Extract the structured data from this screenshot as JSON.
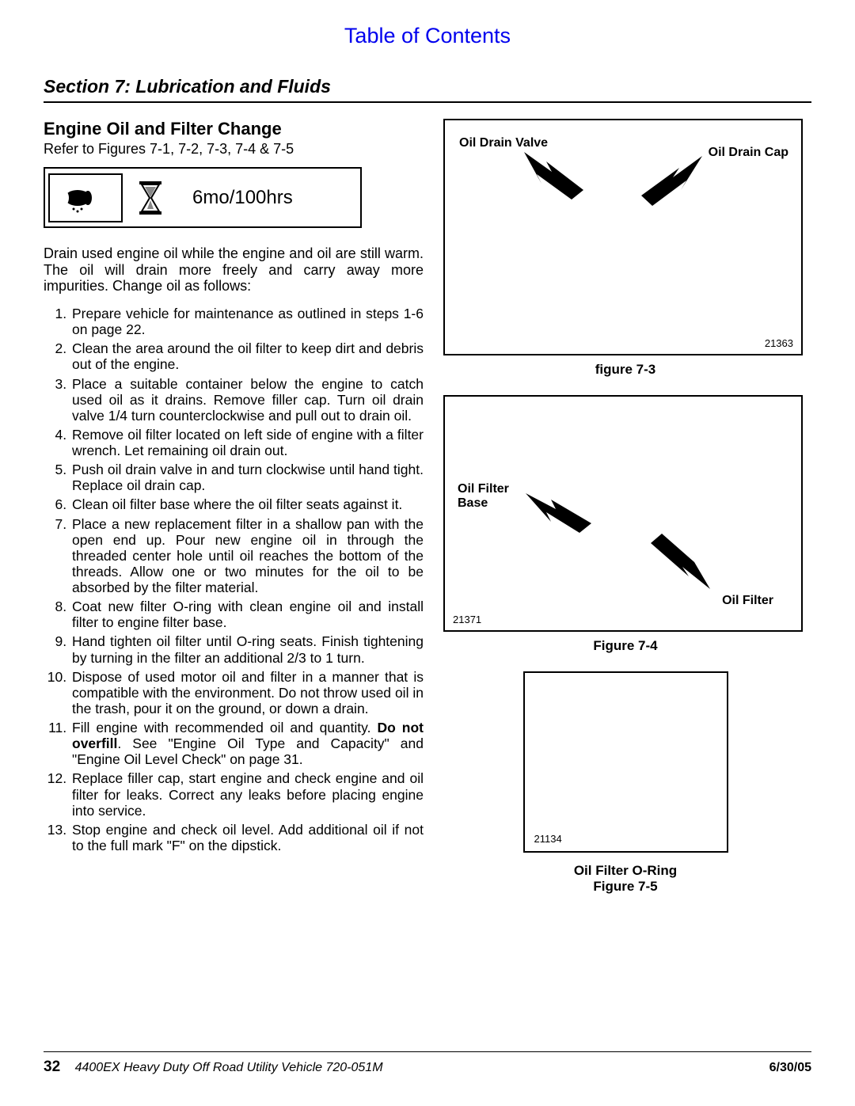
{
  "toc_link": "Table of Contents",
  "section_title": "Section 7: Lubrication and Fluids",
  "subsection": "Engine Oil and Filter Change",
  "refer_text": "Refer to Figures 7-1, 7-2, 7-3, 7-4 & 7-5",
  "interval": "6mo/100hrs",
  "intro": "Drain used engine oil while the engine and oil are still warm. The oil will drain more freely and carry away more impurities. Change oil as follows:",
  "steps": [
    "Prepare vehicle for maintenance as outlined in steps 1-6 on page 22.",
    "Clean the area around the oil filter to keep dirt and debris out of the engine.",
    "Place a suitable container below the engine to catch used oil as it drains. Remove filler cap. Turn oil drain valve 1/4 turn counterclockwise and pull out to drain oil.",
    "Remove oil filter located on left side of engine with a filter wrench. Let remaining oil drain out.",
    "Push oil drain valve in and turn clockwise until hand tight. Replace oil drain cap.",
    "Clean oil filter base where the oil filter seats against it.",
    "Place a new replacement filter in a shallow pan with the open end up. Pour new engine oil in through the threaded center hole until oil reaches the bottom of the threads. Allow one or two minutes for the oil to be absorbed by the filter material.",
    "Coat new filter O-ring with clean engine oil and install filter to engine filter base.",
    "Hand tighten oil filter until O-ring seats. Finish tightening by turning in the filter an additional 2/3 to 1 turn.",
    "Dispose of used motor oil and filter in a manner that is compatible with the environment. Do not throw used oil in the trash, pour it on the ground, or down a drain.",
    "Fill engine with recommended oil and quantity. <b>Do not overfill</b>. See \"Engine Oil Type and Capacity\" and \"Engine Oil Level Check\" on page 31.",
    "Replace filler cap, start engine and check engine and oil filter for leaks. Correct any leaks before placing engine into service.",
    "Stop engine and check oil level. Add additional oil if not to the full mark \"F\" on the dipstick."
  ],
  "fig3": {
    "label_left": "Oil Drain Valve",
    "label_right": "Oil Drain Cap",
    "number": "21363",
    "caption": "figure 7-3"
  },
  "fig4": {
    "label_top": "Oil Filter Base",
    "label_bottom": "Oil Filter",
    "number": "21371",
    "caption": "Figure 7-4"
  },
  "fig5": {
    "number": "21134",
    "caption_line1": "Oil Filter O-Ring",
    "caption_line2": "Figure 7-5"
  },
  "footer": {
    "page": "32",
    "title": "4400EX Heavy Duty Off Road Utility Vehicle  720-051M",
    "date": "6/30/05"
  },
  "colors": {
    "link": "#0000ee",
    "text": "#000000",
    "border": "#000000"
  }
}
